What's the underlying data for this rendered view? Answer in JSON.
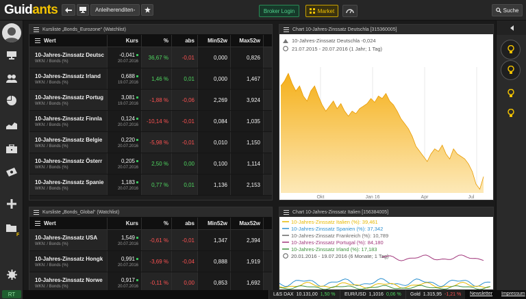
{
  "app": {
    "logo_main": "Guid",
    "logo_accent": "ants"
  },
  "toolbar": {
    "dropdown_label": "Anleiherenditen",
    "broker_login": "Broker Login",
    "market": "Market",
    "search": "Suche"
  },
  "leftbar": {
    "rt": "RT",
    "folder_badge": "F"
  },
  "table1": {
    "title": "Kursliste „Bonds_Eurozone“ (Watchlist)",
    "headers": [
      "Wert",
      "Kurs",
      "%",
      "abs",
      "Min52w",
      "Max52w"
    ],
    "rows": [
      {
        "name": "10-Jahres-Zinssatz Deutsc",
        "sub": "WKN:  / Bonds (%)",
        "kurs": "-0,041",
        "date": "20.07.2016",
        "pct": "36,67 %",
        "abs": "-0,01",
        "min": "0,000",
        "max": "0,826",
        "pct_cls": "pos",
        "abs_cls": "neg"
      },
      {
        "name": "10-Jahres-Zinssatz Irland",
        "sub": "WKN:  / Bonds (%)",
        "kurs": "0,688",
        "date": "19.07.2016",
        "pct": "1,46 %",
        "abs": "0,01",
        "min": "0,000",
        "max": "1,467",
        "pct_cls": "pos",
        "abs_cls": "pos"
      },
      {
        "name": "10-Jahres-Zinssatz Portug",
        "sub": "WKN:  / Bonds (%)",
        "kurs": "3,081",
        "date": "19.07.2016",
        "pct": "-1,88 %",
        "abs": "-0,06",
        "min": "2,269",
        "max": "3,924",
        "pct_cls": "neg",
        "abs_cls": "neg"
      },
      {
        "name": "10-Jahres-Zinssatz Finnla",
        "sub": "WKN:  / Bonds (%)",
        "kurs": "0,124",
        "date": "20.07.2016",
        "pct": "-10,14 %",
        "abs": "-0,01",
        "min": "0,084",
        "max": "1,035",
        "pct_cls": "neg",
        "abs_cls": "neg"
      },
      {
        "name": "10-Jahres-Zinssatz Belgie",
        "sub": "WKN:  / Bonds (%)",
        "kurs": "0,220",
        "date": "20.07.2016",
        "pct": "-5,98 %",
        "abs": "-0,01",
        "min": "0,010",
        "max": "1,150",
        "pct_cls": "neg",
        "abs_cls": "neg"
      },
      {
        "name": "10-Jahres-Zinssatz Österr",
        "sub": "WKN:  / Bonds (%)",
        "kurs": "0,205",
        "date": "20.07.2016",
        "pct": "2,50 %",
        "abs": "0,00",
        "min": "0,100",
        "max": "1,114",
        "pct_cls": "pos",
        "abs_cls": "pos"
      },
      {
        "name": "10-Jahres-Zinssatz Spanie",
        "sub": "WKN:  / Bonds (%)",
        "kurs": "1,183",
        "date": "20.07.2016",
        "pct": "0,77 %",
        "abs": "0,01",
        "min": "1,136",
        "max": "2,153",
        "pct_cls": "pos",
        "abs_cls": "pos"
      }
    ]
  },
  "table2": {
    "title": "Kursliste „Bonds_Global“ (Watchlist)",
    "headers": [
      "Wert",
      "Kurs",
      "%",
      "abs",
      "Min52w",
      "Max52w"
    ],
    "rows": [
      {
        "name": "10-Jahres-Zinssatz USA",
        "sub": "WKN:  / Bonds (%)",
        "kurs": "1,549",
        "date": "20.07.2016",
        "pct": "-0,61 %",
        "abs": "-0,01",
        "min": "1,347",
        "max": "2,394",
        "pct_cls": "neg",
        "abs_cls": "neg"
      },
      {
        "name": "10-Jahres-Zinssatz Hongk",
        "sub": "WKN:  / Bonds (%)",
        "kurs": "0,991",
        "date": "20.07.2016",
        "pct": "-3,69 %",
        "abs": "-0,04",
        "min": "0,888",
        "max": "1,919",
        "pct_cls": "neg",
        "abs_cls": "neg"
      },
      {
        "name": "10-Jahres-Zinssatz Norwe",
        "sub": "WKN:  / Bonds (%)",
        "kurs": "0,917",
        "date": "20.07.2016",
        "pct": "-0,11 %",
        "abs": "0,00",
        "min": "0,853",
        "max": "1,692",
        "pct_cls": "neg",
        "abs_cls": "neg"
      }
    ]
  },
  "chart1": {
    "title": "Chart 10-Jahres-Zinssatz Deutschla [315360005]",
    "legend_name": "10-Jahres-Zinssatz Deutschla",
    "legend_value": "-0,024",
    "range": "21.07.2015 - 20.07.2016 (1 Jahr; 1 Tag)",
    "xticks": [
      "Okt",
      "Jan 16",
      "Apr",
      "Jul"
    ]
  },
  "chart2": {
    "title": "Chart 10-Jahres-Zinssatz Italien [156384005]",
    "legend": [
      {
        "label": "10-Jahres-Zinssatz Italien (%): 39,461",
        "color": "#e6b800"
      },
      {
        "label": "10-Jahres-Zinssatz Spanien (%): 37,342",
        "color": "#2a8fcf"
      },
      {
        "label": "10-Jahres-Zinssatz Frankreich (%): 10,789",
        "color": "#666666"
      },
      {
        "label": "10-Jahres-Zinssatz Portugal (%): 84,180",
        "color": "#a0357a"
      },
      {
        "label": "10-Jahres-Zinssatz Irland (%): 17,183",
        "color": "#3a8f3a"
      }
    ],
    "range": "20.01.2016 - 19.07.2016 (6 Monate; 1 Tag)"
  },
  "chart_data": [
    {
      "type": "area",
      "series": [
        {
          "name": "10-Jahres-Zinssatz Deutschla",
          "values": [
            0.7,
            0.74,
            0.8,
            0.72,
            0.66,
            0.7,
            0.62,
            0.58,
            0.66,
            0.7,
            0.62,
            0.55,
            0.5,
            0.54,
            0.58,
            0.52,
            0.56,
            0.5,
            0.46,
            0.5,
            0.48,
            0.52,
            0.54,
            0.56,
            0.6,
            0.57,
            0.62,
            0.6,
            0.64,
            0.58,
            0.55,
            0.5,
            0.44,
            0.4,
            0.36,
            0.3,
            0.22,
            0.18,
            0.14,
            0.1,
            0.16,
            0.2,
            0.18,
            0.23,
            0.16,
            0.12,
            0.2,
            0.16,
            0.14,
            0.12,
            0.08,
            0.02,
            -0.08,
            -0.12,
            -0.02
          ]
        }
      ],
      "xticks": [
        "Okt",
        "Jan 16",
        "Apr",
        "Jul"
      ],
      "grid": true
    },
    {
      "type": "line",
      "series": [
        {
          "name": "10-Jahres-Zinssatz Italien (%)",
          "value": 39.461
        },
        {
          "name": "10-Jahres-Zinssatz Spanien (%)",
          "value": 37.342
        },
        {
          "name": "10-Jahres-Zinssatz Frankreich (%)",
          "value": 10.789
        },
        {
          "name": "10-Jahres-Zinssatz Portugal (%)",
          "value": 84.18
        },
        {
          "name": "10-Jahres-Zinssatz Irland (%)",
          "value": 17.183
        }
      ]
    }
  ],
  "bottom": {
    "t1_label": "L&S DAX",
    "t1_val": "10.131,00",
    "t1_pct": "1,50 %",
    "t2_label": "EUR/USD",
    "t2_val": "1,1016",
    "t2_pct": "0,06 %",
    "t3_label": "Gold",
    "t3_val": "1.315,95",
    "t3_pct": "-1,21 %",
    "newsletter": "Newsletter",
    "impressum": "Impressum"
  }
}
